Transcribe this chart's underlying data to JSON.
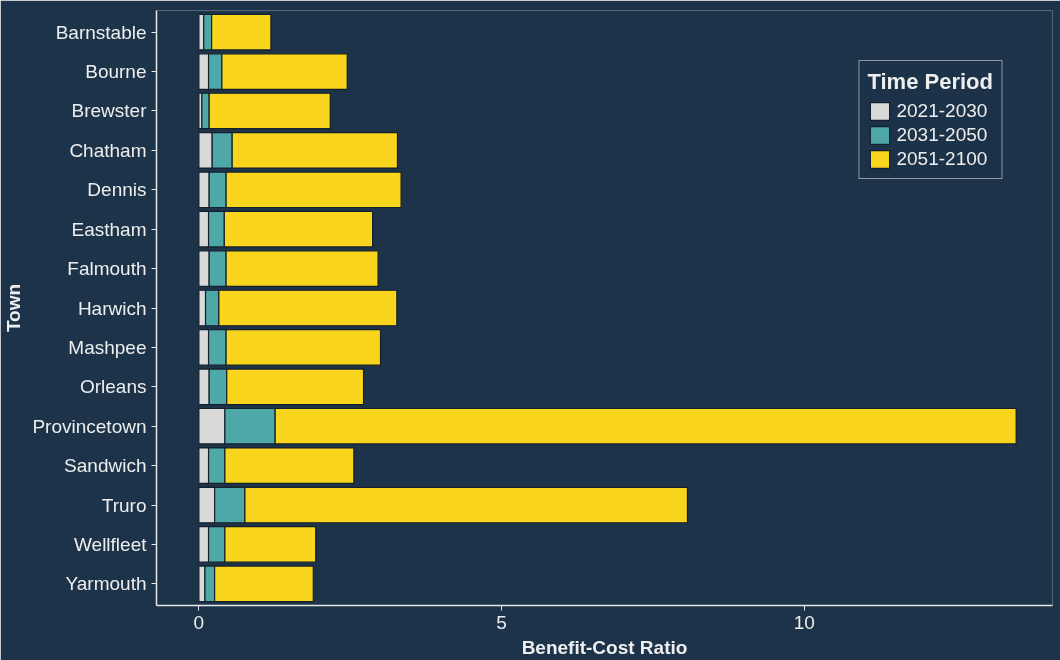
{
  "chart_data": {
    "type": "bar",
    "orientation": "horizontal",
    "stacked": true,
    "xlabel": "Benefit-Cost Ratio",
    "ylabel": "Town",
    "legend_title": "Time Period",
    "categories": [
      "Barnstable",
      "Bourne",
      "Brewster",
      "Chatham",
      "Dennis",
      "Eastham",
      "Falmouth",
      "Harwich",
      "Mashpee",
      "Orleans",
      "Provincetown",
      "Sandwich",
      "Truro",
      "Wellfleet",
      "Yarmouth"
    ],
    "series": [
      {
        "name": "2021-2030",
        "color": "#d9d9d9",
        "values": [
          0.08,
          0.16,
          0.05,
          0.22,
          0.17,
          0.16,
          0.17,
          0.11,
          0.16,
          0.17,
          0.43,
          0.16,
          0.26,
          0.16,
          0.1
        ]
      },
      {
        "name": "2031-2050",
        "color": "#4fa8a8",
        "values": [
          0.13,
          0.22,
          0.12,
          0.33,
          0.28,
          0.26,
          0.28,
          0.22,
          0.29,
          0.29,
          0.83,
          0.27,
          0.5,
          0.27,
          0.16
        ]
      },
      {
        "name": "2051-2100",
        "color": "#fad51e",
        "values": [
          0.98,
          2.07,
          2.0,
          2.73,
          2.89,
          2.45,
          2.51,
          2.94,
          2.55,
          2.26,
          12.24,
          2.13,
          7.31,
          1.5,
          1.63
        ]
      }
    ],
    "xlim": [
      -0.7,
      14.1
    ],
    "xticks": [
      0,
      5,
      10
    ],
    "grid": false,
    "legend": "top right"
  }
}
